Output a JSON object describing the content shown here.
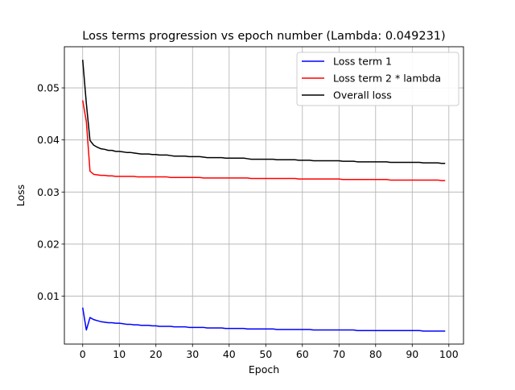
{
  "chart_data": {
    "type": "line",
    "title": "Loss terms progression vs epoch number (Lambda: 0.049231)",
    "xlabel": "Epoch",
    "ylabel": "Loss",
    "xlim": [
      -5,
      104
    ],
    "ylim": [
      0.0008,
      0.0579
    ],
    "xticks": [
      0,
      10,
      20,
      30,
      40,
      50,
      60,
      70,
      80,
      90,
      100
    ],
    "yticks": [
      0.01,
      0.02,
      0.03,
      0.04,
      0.05
    ],
    "ytick_labels": [
      "0.01",
      "0.02",
      "0.03",
      "0.04",
      "0.05"
    ],
    "grid": true,
    "legend_position": "top-right",
    "series": [
      {
        "name": "Loss term 1",
        "color": "#0000ff",
        "x_start": 0,
        "values": [
          0.0078,
          0.0035,
          0.0059,
          0.0055,
          0.0053,
          0.0051,
          0.005,
          0.0049,
          0.0049,
          0.0048,
          0.0048,
          0.0047,
          0.0046,
          0.0046,
          0.0045,
          0.0045,
          0.0044,
          0.0044,
          0.0044,
          0.0043,
          0.0043,
          0.0042,
          0.0042,
          0.0042,
          0.0042,
          0.0041,
          0.0041,
          0.0041,
          0.0041,
          0.004,
          0.004,
          0.004,
          0.004,
          0.004,
          0.0039,
          0.0039,
          0.0039,
          0.0039,
          0.0039,
          0.0038,
          0.0038,
          0.0038,
          0.0038,
          0.0038,
          0.0038,
          0.0037,
          0.0037,
          0.0037,
          0.0037,
          0.0037,
          0.0037,
          0.0037,
          0.0037,
          0.0036,
          0.0036,
          0.0036,
          0.0036,
          0.0036,
          0.0036,
          0.0036,
          0.0036,
          0.0036,
          0.0036,
          0.0035,
          0.0035,
          0.0035,
          0.0035,
          0.0035,
          0.0035,
          0.0035,
          0.0035,
          0.0035,
          0.0035,
          0.0035,
          0.0035,
          0.0034,
          0.0034,
          0.0034,
          0.0034,
          0.0034,
          0.0034,
          0.0034,
          0.0034,
          0.0034,
          0.0034,
          0.0034,
          0.0034,
          0.0034,
          0.0034,
          0.0034,
          0.0034,
          0.0034,
          0.0034,
          0.0033,
          0.0033,
          0.0033,
          0.0033,
          0.0033,
          0.0033,
          0.0033
        ]
      },
      {
        "name": "Loss term 2 * lambda",
        "color": "#ff0000",
        "x_start": 0,
        "values": [
          0.0476,
          0.0435,
          0.034,
          0.0334,
          0.0333,
          0.0332,
          0.0332,
          0.0331,
          0.0331,
          0.033,
          0.033,
          0.033,
          0.033,
          0.033,
          0.033,
          0.0329,
          0.0329,
          0.0329,
          0.0329,
          0.0329,
          0.0329,
          0.0329,
          0.0329,
          0.0329,
          0.0328,
          0.0328,
          0.0328,
          0.0328,
          0.0328,
          0.0328,
          0.0328,
          0.0328,
          0.0328,
          0.0327,
          0.0327,
          0.0327,
          0.0327,
          0.0327,
          0.0327,
          0.0327,
          0.0327,
          0.0327,
          0.0327,
          0.0327,
          0.0327,
          0.0327,
          0.0326,
          0.0326,
          0.0326,
          0.0326,
          0.0326,
          0.0326,
          0.0326,
          0.0326,
          0.0326,
          0.0326,
          0.0326,
          0.0326,
          0.0326,
          0.0325,
          0.0325,
          0.0325,
          0.0325,
          0.0325,
          0.0325,
          0.0325,
          0.0325,
          0.0325,
          0.0325,
          0.0325,
          0.0325,
          0.0324,
          0.0324,
          0.0324,
          0.0324,
          0.0324,
          0.0324,
          0.0324,
          0.0324,
          0.0324,
          0.0324,
          0.0324,
          0.0324,
          0.0324,
          0.0323,
          0.0323,
          0.0323,
          0.0323,
          0.0323,
          0.0323,
          0.0323,
          0.0323,
          0.0323,
          0.0323,
          0.0323,
          0.0323,
          0.0323,
          0.0323,
          0.0322,
          0.0322
        ]
      },
      {
        "name": "Overall loss",
        "color": "#000000",
        "x_start": 0,
        "values": [
          0.0554,
          0.047,
          0.0399,
          0.039,
          0.0386,
          0.0383,
          0.0382,
          0.038,
          0.038,
          0.0378,
          0.0378,
          0.0377,
          0.0376,
          0.0376,
          0.0375,
          0.0374,
          0.0373,
          0.0373,
          0.0373,
          0.0372,
          0.0372,
          0.0371,
          0.0371,
          0.0371,
          0.037,
          0.0369,
          0.0369,
          0.0369,
          0.0369,
          0.0368,
          0.0368,
          0.0368,
          0.0368,
          0.0367,
          0.0366,
          0.0366,
          0.0366,
          0.0366,
          0.0366,
          0.0365,
          0.0365,
          0.0365,
          0.0365,
          0.0365,
          0.0365,
          0.0364,
          0.0363,
          0.0363,
          0.0363,
          0.0363,
          0.0363,
          0.0363,
          0.0363,
          0.0362,
          0.0362,
          0.0362,
          0.0362,
          0.0362,
          0.0362,
          0.0361,
          0.0361,
          0.0361,
          0.0361,
          0.036,
          0.036,
          0.036,
          0.036,
          0.036,
          0.036,
          0.036,
          0.036,
          0.0359,
          0.0359,
          0.0359,
          0.0359,
          0.0358,
          0.0358,
          0.0358,
          0.0358,
          0.0358,
          0.0358,
          0.0358,
          0.0358,
          0.0358,
          0.0357,
          0.0357,
          0.0357,
          0.0357,
          0.0357,
          0.0357,
          0.0357,
          0.0357,
          0.0357,
          0.0356,
          0.0356,
          0.0356,
          0.0356,
          0.0356,
          0.0355,
          0.0355
        ]
      }
    ]
  }
}
